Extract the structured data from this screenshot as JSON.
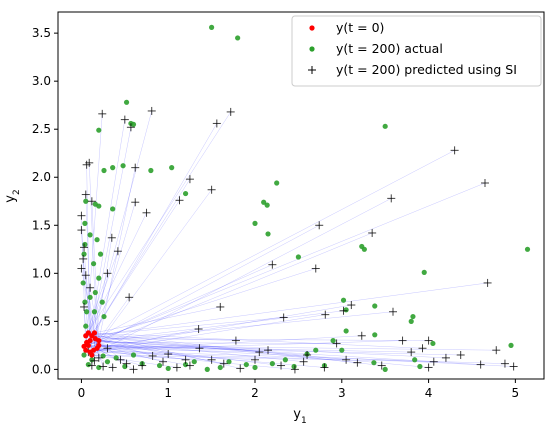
{
  "chart_data": {
    "type": "scatter",
    "xlabel_base": "y",
    "xlabel_sub": "1",
    "ylabel_base": "y",
    "ylabel_sub": "2",
    "xlim": [
      -0.27,
      5.33
    ],
    "ylim": [
      -0.1,
      3.72
    ],
    "xticks": [
      0,
      1,
      2,
      3,
      4,
      5
    ],
    "yticks": [
      0.0,
      0.5,
      1.0,
      1.5,
      2.0,
      2.5,
      3.0,
      3.5
    ],
    "grid": false,
    "legend_position": "top-right",
    "colors": {
      "initial": "#ff0000",
      "actual": "#2ca02c",
      "predicted": "#000000",
      "link": "#0000ff"
    },
    "legend": [
      {
        "label": "y(t = 0)",
        "marker": "dot",
        "color": "#ff0000"
      },
      {
        "label": "y(t = 200) actual",
        "marker": "dot",
        "color": "#2ca02c"
      },
      {
        "label": "y(t = 200) predicted using SI",
        "marker": "plus",
        "color": "#000000"
      }
    ],
    "series": [
      {
        "name": "y(t = 0)",
        "points": [
          [
            0.05,
            0.2
          ],
          [
            0.08,
            0.25
          ],
          [
            0.1,
            0.3
          ],
          [
            0.12,
            0.35
          ],
          [
            0.15,
            0.38
          ],
          [
            0.05,
            0.35
          ],
          [
            0.1,
            0.18
          ],
          [
            0.18,
            0.22
          ],
          [
            0.2,
            0.3
          ],
          [
            0.06,
            0.28
          ],
          [
            0.14,
            0.2
          ],
          [
            0.08,
            0.38
          ],
          [
            0.16,
            0.32
          ],
          [
            0.03,
            0.24
          ],
          [
            0.12,
            0.15
          ],
          [
            0.2,
            0.25
          ]
        ]
      },
      {
        "name": "y(t = 200) actual",
        "points": [
          [
            1.5,
            3.56
          ],
          [
            1.8,
            3.45
          ],
          [
            0.52,
            2.78
          ],
          [
            0.57,
            2.56
          ],
          [
            0.2,
            2.49
          ],
          [
            0.6,
            2.55
          ],
          [
            0.26,
            2.07
          ],
          [
            0.36,
            2.1
          ],
          [
            0.48,
            2.12
          ],
          [
            0.8,
            2.07
          ],
          [
            1.04,
            2.1
          ],
          [
            1.2,
            1.83
          ],
          [
            0.16,
            1.72
          ],
          [
            0.2,
            1.7
          ],
          [
            0.36,
            1.67
          ],
          [
            0.05,
            1.75
          ],
          [
            2.1,
            1.74
          ],
          [
            2.14,
            1.71
          ],
          [
            2.25,
            1.94
          ],
          [
            2.0,
            1.52
          ],
          [
            2.15,
            1.41
          ],
          [
            3.5,
            2.53
          ],
          [
            3.23,
            1.28
          ],
          [
            3.26,
            1.25
          ],
          [
            5.14,
            1.25
          ],
          [
            3.95,
            1.01
          ],
          [
            2.5,
            1.17
          ],
          [
            0.04,
            1.52
          ],
          [
            0.1,
            1.4
          ],
          [
            0.18,
            1.35
          ],
          [
            0.22,
            1.2
          ],
          [
            0.14,
            1.1
          ],
          [
            0.2,
            0.95
          ],
          [
            0.16,
            0.8
          ],
          [
            0.24,
            0.7
          ],
          [
            0.1,
            0.75
          ],
          [
            0.26,
            0.55
          ],
          [
            0.04,
            0.7
          ],
          [
            0.15,
            0.6
          ],
          [
            3.02,
            0.72
          ],
          [
            3.05,
            0.62
          ],
          [
            3.38,
            0.66
          ],
          [
            3.8,
            0.5
          ],
          [
            3.82,
            0.55
          ],
          [
            3.05,
            0.4
          ],
          [
            3.38,
            0.36
          ],
          [
            2.9,
            0.3
          ],
          [
            3.0,
            0.2
          ],
          [
            3.37,
            0.07
          ],
          [
            4.05,
            0.27
          ],
          [
            4.95,
            0.25
          ],
          [
            3.84,
            0.1
          ],
          [
            3.5,
            0.0
          ],
          [
            3.9,
            0.03
          ],
          [
            2.35,
            0.1
          ],
          [
            2.6,
            0.16
          ],
          [
            2.7,
            0.2
          ],
          [
            2.2,
            0.06
          ],
          [
            1.9,
            0.05
          ],
          [
            1.6,
            0.02
          ],
          [
            1.3,
            0.08
          ],
          [
            1.0,
            0.01
          ],
          [
            0.7,
            0.06
          ],
          [
            0.5,
            0.03
          ],
          [
            0.3,
            0.08
          ],
          [
            0.2,
            0.02
          ],
          [
            0.12,
            0.1
          ],
          [
            0.08,
            0.05
          ],
          [
            0.25,
            0.14
          ],
          [
            0.4,
            0.12
          ],
          [
            0.6,
            0.15
          ],
          [
            0.9,
            0.04
          ],
          [
            1.2,
            0.05
          ],
          [
            1.45,
            0.0
          ],
          [
            1.7,
            0.08
          ],
          [
            2.0,
            0.02
          ],
          [
            2.45,
            0.03
          ],
          [
            2.8,
            0.04
          ],
          [
            0.03,
            0.15
          ],
          [
            0.05,
            0.45
          ],
          [
            0.06,
            0.6
          ],
          [
            0.02,
            0.9
          ],
          [
            0.03,
            1.2
          ],
          [
            0.04,
            1.3
          ]
        ]
      },
      {
        "name": "y(t = 200) predicted using SI",
        "points": [
          [
            0.24,
            2.66
          ],
          [
            0.5,
            2.6
          ],
          [
            0.57,
            2.52
          ],
          [
            0.81,
            2.69
          ],
          [
            1.56,
            2.56
          ],
          [
            1.72,
            2.68
          ],
          [
            0.06,
            2.13
          ],
          [
            0.09,
            2.15
          ],
          [
            0.62,
            2.1
          ],
          [
            1.25,
            1.98
          ],
          [
            1.5,
            1.87
          ],
          [
            0.75,
            1.63
          ],
          [
            0.62,
            1.74
          ],
          [
            1.13,
            1.76
          ],
          [
            0.05,
            1.82
          ],
          [
            0.12,
            1.75
          ],
          [
            0.0,
            1.6
          ],
          [
            0.0,
            1.45
          ],
          [
            0.03,
            1.27
          ],
          [
            0.02,
            1.15
          ],
          [
            0.0,
            1.05
          ],
          [
            0.3,
            1.0
          ],
          [
            0.55,
            0.75
          ],
          [
            0.05,
            0.98
          ],
          [
            0.1,
            0.85
          ],
          [
            0.03,
            0.65
          ],
          [
            0.35,
            1.37
          ],
          [
            0.42,
            1.23
          ],
          [
            4.3,
            2.28
          ],
          [
            4.65,
            1.94
          ],
          [
            3.57,
            1.78
          ],
          [
            3.35,
            1.42
          ],
          [
            2.74,
            1.5
          ],
          [
            2.2,
            1.09
          ],
          [
            2.7,
            1.05
          ],
          [
            4.68,
            0.9
          ],
          [
            1.6,
            0.65
          ],
          [
            2.33,
            0.54
          ],
          [
            2.81,
            0.57
          ],
          [
            3.11,
            0.67
          ],
          [
            3.02,
            0.61
          ],
          [
            3.59,
            0.6
          ],
          [
            3.7,
            0.3
          ],
          [
            3.93,
            0.22
          ],
          [
            4.0,
            0.3
          ],
          [
            4.37,
            0.15
          ],
          [
            4.06,
            0.08
          ],
          [
            4.78,
            0.2
          ],
          [
            4.88,
            0.06
          ],
          [
            4.98,
            0.03
          ],
          [
            4.6,
            0.05
          ],
          [
            4.0,
            0.02
          ],
          [
            3.46,
            0.04
          ],
          [
            3.18,
            0.07
          ],
          [
            3.05,
            0.1
          ],
          [
            2.8,
            0.02
          ],
          [
            2.56,
            0.08
          ],
          [
            2.3,
            0.04
          ],
          [
            2.0,
            0.1
          ],
          [
            1.83,
            0.01
          ],
          [
            1.64,
            0.06
          ],
          [
            1.36,
            0.22
          ],
          [
            1.1,
            0.02
          ],
          [
            0.94,
            0.08
          ],
          [
            0.7,
            0.04
          ],
          [
            0.45,
            0.1
          ],
          [
            0.3,
            0.22
          ],
          [
            0.25,
            0.03
          ],
          [
            0.15,
            0.09
          ],
          [
            1.78,
            0.3
          ],
          [
            1.35,
            0.42
          ],
          [
            2.05,
            0.18
          ],
          [
            2.6,
            0.15
          ],
          [
            2.94,
            0.27
          ],
          [
            3.23,
            0.35
          ],
          [
            0.52,
            0.06
          ],
          [
            0.82,
            0.14
          ],
          [
            1.25,
            0.04
          ],
          [
            1.5,
            0.1
          ],
          [
            2.15,
            0.2
          ],
          [
            2.46,
            0.0
          ],
          [
            3.8,
            0.18
          ],
          [
            4.2,
            0.12
          ],
          [
            0.12,
            0.04
          ],
          [
            0.2,
            0.12
          ],
          [
            0.08,
            0.18
          ],
          [
            0.36,
            0.02
          ],
          [
            0.6,
            0.0
          ],
          [
            1.0,
            0.16
          ],
          [
            1.2,
            0.1
          ]
        ]
      }
    ]
  }
}
